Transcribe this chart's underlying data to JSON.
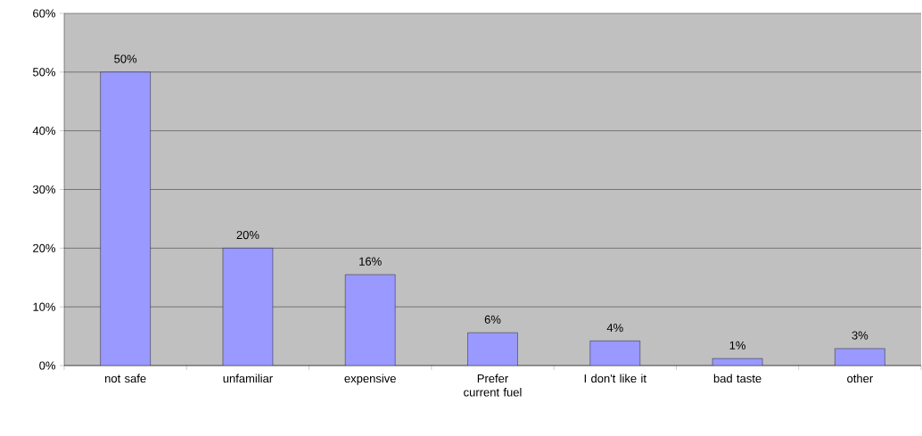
{
  "chart_data": {
    "type": "bar",
    "categories": [
      "not safe",
      "unfamiliar",
      "expensive",
      "Prefer current fuel",
      "I don't like it",
      "bad taste",
      "other"
    ],
    "values": [
      50,
      20,
      15.5,
      5.6,
      4.2,
      1.2,
      2.9
    ],
    "value_labels": [
      "50%",
      "20%",
      "16%",
      "6%",
      "4%",
      "1%",
      "3%"
    ],
    "color": "#9999ff",
    "ylim": [
      0,
      60
    ],
    "yticks": [
      {
        "value": 0,
        "label": "0%"
      },
      {
        "value": 10,
        "label": "10%"
      },
      {
        "value": 20,
        "label": "20%"
      },
      {
        "value": 30,
        "label": "30%"
      },
      {
        "value": 40,
        "label": "40%"
      },
      {
        "value": 50,
        "label": "50%"
      },
      {
        "value": 60,
        "label": "60%"
      }
    ],
    "grid": "y"
  }
}
